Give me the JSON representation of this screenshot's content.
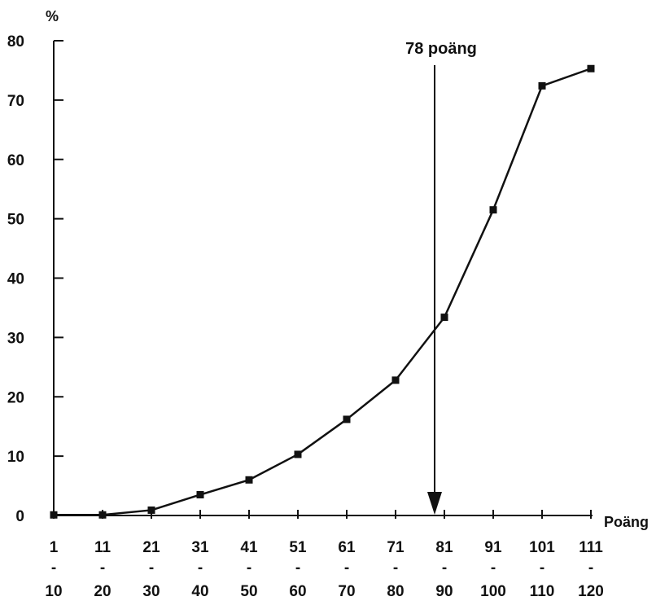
{
  "chart_data": {
    "type": "line",
    "title": "",
    "ylabel": "%",
    "xlabel": "Poäng",
    "ylim": [
      0,
      80
    ],
    "yticks": [
      "0",
      "10",
      "20",
      "30",
      "40",
      "50",
      "60",
      "70",
      "80"
    ],
    "categories": [
      {
        "top": "1",
        "mid": "-",
        "bottom": "10"
      },
      {
        "top": "11",
        "mid": "-",
        "bottom": "20"
      },
      {
        "top": "21",
        "mid": "-",
        "bottom": "30"
      },
      {
        "top": "31",
        "mid": "-",
        "bottom": "40"
      },
      {
        "top": "41",
        "mid": "-",
        "bottom": "50"
      },
      {
        "top": "51",
        "mid": "-",
        "bottom": "60"
      },
      {
        "top": "61",
        "mid": "-",
        "bottom": "70"
      },
      {
        "top": "71",
        "mid": "-",
        "bottom": "80"
      },
      {
        "top": "81",
        "mid": "-",
        "bottom": "90"
      },
      {
        "top": "91",
        "mid": "-",
        "bottom": "100"
      },
      {
        "top": "101",
        "mid": "-",
        "bottom": "110"
      },
      {
        "top": "111",
        "mid": "-",
        "bottom": "120"
      }
    ],
    "series": [
      {
        "values": [
          0.1,
          0.1,
          0.9,
          3.5,
          6.0,
          10.3,
          16.2,
          22.8,
          33.4,
          51.5,
          72.4,
          75.3
        ]
      }
    ],
    "annotation": {
      "label": "78 poäng",
      "category_index": 7.8
    },
    "grid": false,
    "legend": "none",
    "colors": {
      "line": "#111111",
      "marker": "#111111",
      "axis": "#111111"
    }
  }
}
